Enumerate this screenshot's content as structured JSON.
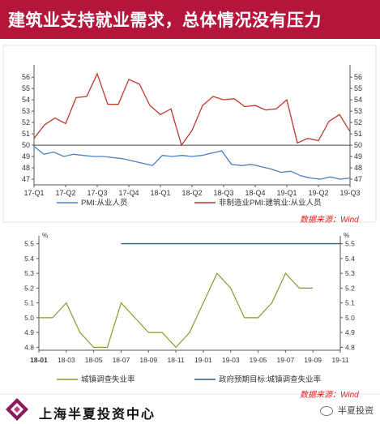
{
  "header": {
    "title": "建筑业支持就业需求，总体情况没有压力"
  },
  "colors": {
    "header_bg": "#b3163a",
    "pmi_employment": "#4a7fc1",
    "construction": "#c0392b",
    "urban_unemp": "#8a9a2a",
    "target": "#2e5f8a",
    "source_red": "#e11b1b"
  },
  "chart_data": [
    {
      "type": "line",
      "x_labels": [
        "17-Q1",
        "17-Q2",
        "17-Q3",
        "17-Q4",
        "18-Q1",
        "18-Q2",
        "18-Q3",
        "18-Q4",
        "19-Q1",
        "19-Q2",
        "19-Q3"
      ],
      "y_ticks": [
        47,
        48,
        49,
        50,
        51,
        52,
        53,
        54,
        55,
        56
      ],
      "ylim": [
        46.5,
        56.8
      ],
      "grid": false,
      "legend_position": "bottom",
      "series": [
        {
          "name": "PMI:从业人员",
          "values": [
            49.9,
            49.2,
            49.4,
            49.0,
            49.2,
            49.1,
            49.0,
            49.0,
            48.9,
            48.8,
            48.6,
            48.4,
            48.2,
            49.1,
            49.0,
            49.1,
            49.0,
            49.1,
            49.3,
            49.5,
            48.3,
            48.2,
            48.3,
            48.1,
            47.9,
            47.6,
            47.7,
            47.3,
            47.1,
            47.0,
            47.2,
            47.0,
            47.1
          ]
        },
        {
          "name": "非制造业PMI:建筑业:从业人员",
          "values": [
            50.6,
            51.8,
            52.4,
            51.9,
            54.2,
            54.3,
            56.3,
            53.6,
            53.6,
            55.8,
            55.4,
            53.5,
            52.7,
            53.2,
            50.0,
            51.3,
            53.5,
            54.3,
            54.0,
            54.1,
            53.4,
            53.5,
            53.1,
            53.2,
            54.0,
            50.2,
            50.6,
            50.4,
            52.1,
            52.7,
            51.2
          ]
        }
      ],
      "source": "数据来源：Wind"
    },
    {
      "type": "line",
      "x_labels": [
        "18-01",
        "18-03",
        "18-05",
        "18-07",
        "18-09",
        "18-11",
        "19-01",
        "19-03",
        "19-05",
        "19-07",
        "19-09",
        "19-11"
      ],
      "y_ticks": [
        4.8,
        4.9,
        5.0,
        5.1,
        5.2,
        5.3,
        5.4,
        5.5
      ],
      "ylim": [
        4.78,
        5.52
      ],
      "unit": "%",
      "grid": false,
      "legend_position": "bottom",
      "series": [
        {
          "name": "城镇调查失业率",
          "values": [
            5.0,
            5.0,
            5.1,
            4.9,
            4.8,
            4.8,
            5.1,
            5.0,
            4.9,
            4.9,
            4.8,
            4.9,
            5.1,
            5.3,
            5.2,
            5.0,
            5.0,
            5.1,
            5.3,
            5.2,
            5.2
          ]
        },
        {
          "name": "政府预期目标:城镇调查失业率",
          "values": [
            5.5,
            5.5,
            5.5,
            5.5,
            5.5,
            5.5,
            5.5,
            5.5,
            5.5,
            5.5,
            5.5,
            5.5,
            5.5,
            5.5,
            5.5,
            5.5,
            5.5,
            5.5,
            5.5,
            5.5,
            5.5,
            5.5,
            5.5
          ]
        }
      ],
      "source": "数据来源：Wind"
    }
  ],
  "footer": {
    "org_name": "上海半夏投资中心",
    "wechat_name": "半夏投资"
  }
}
